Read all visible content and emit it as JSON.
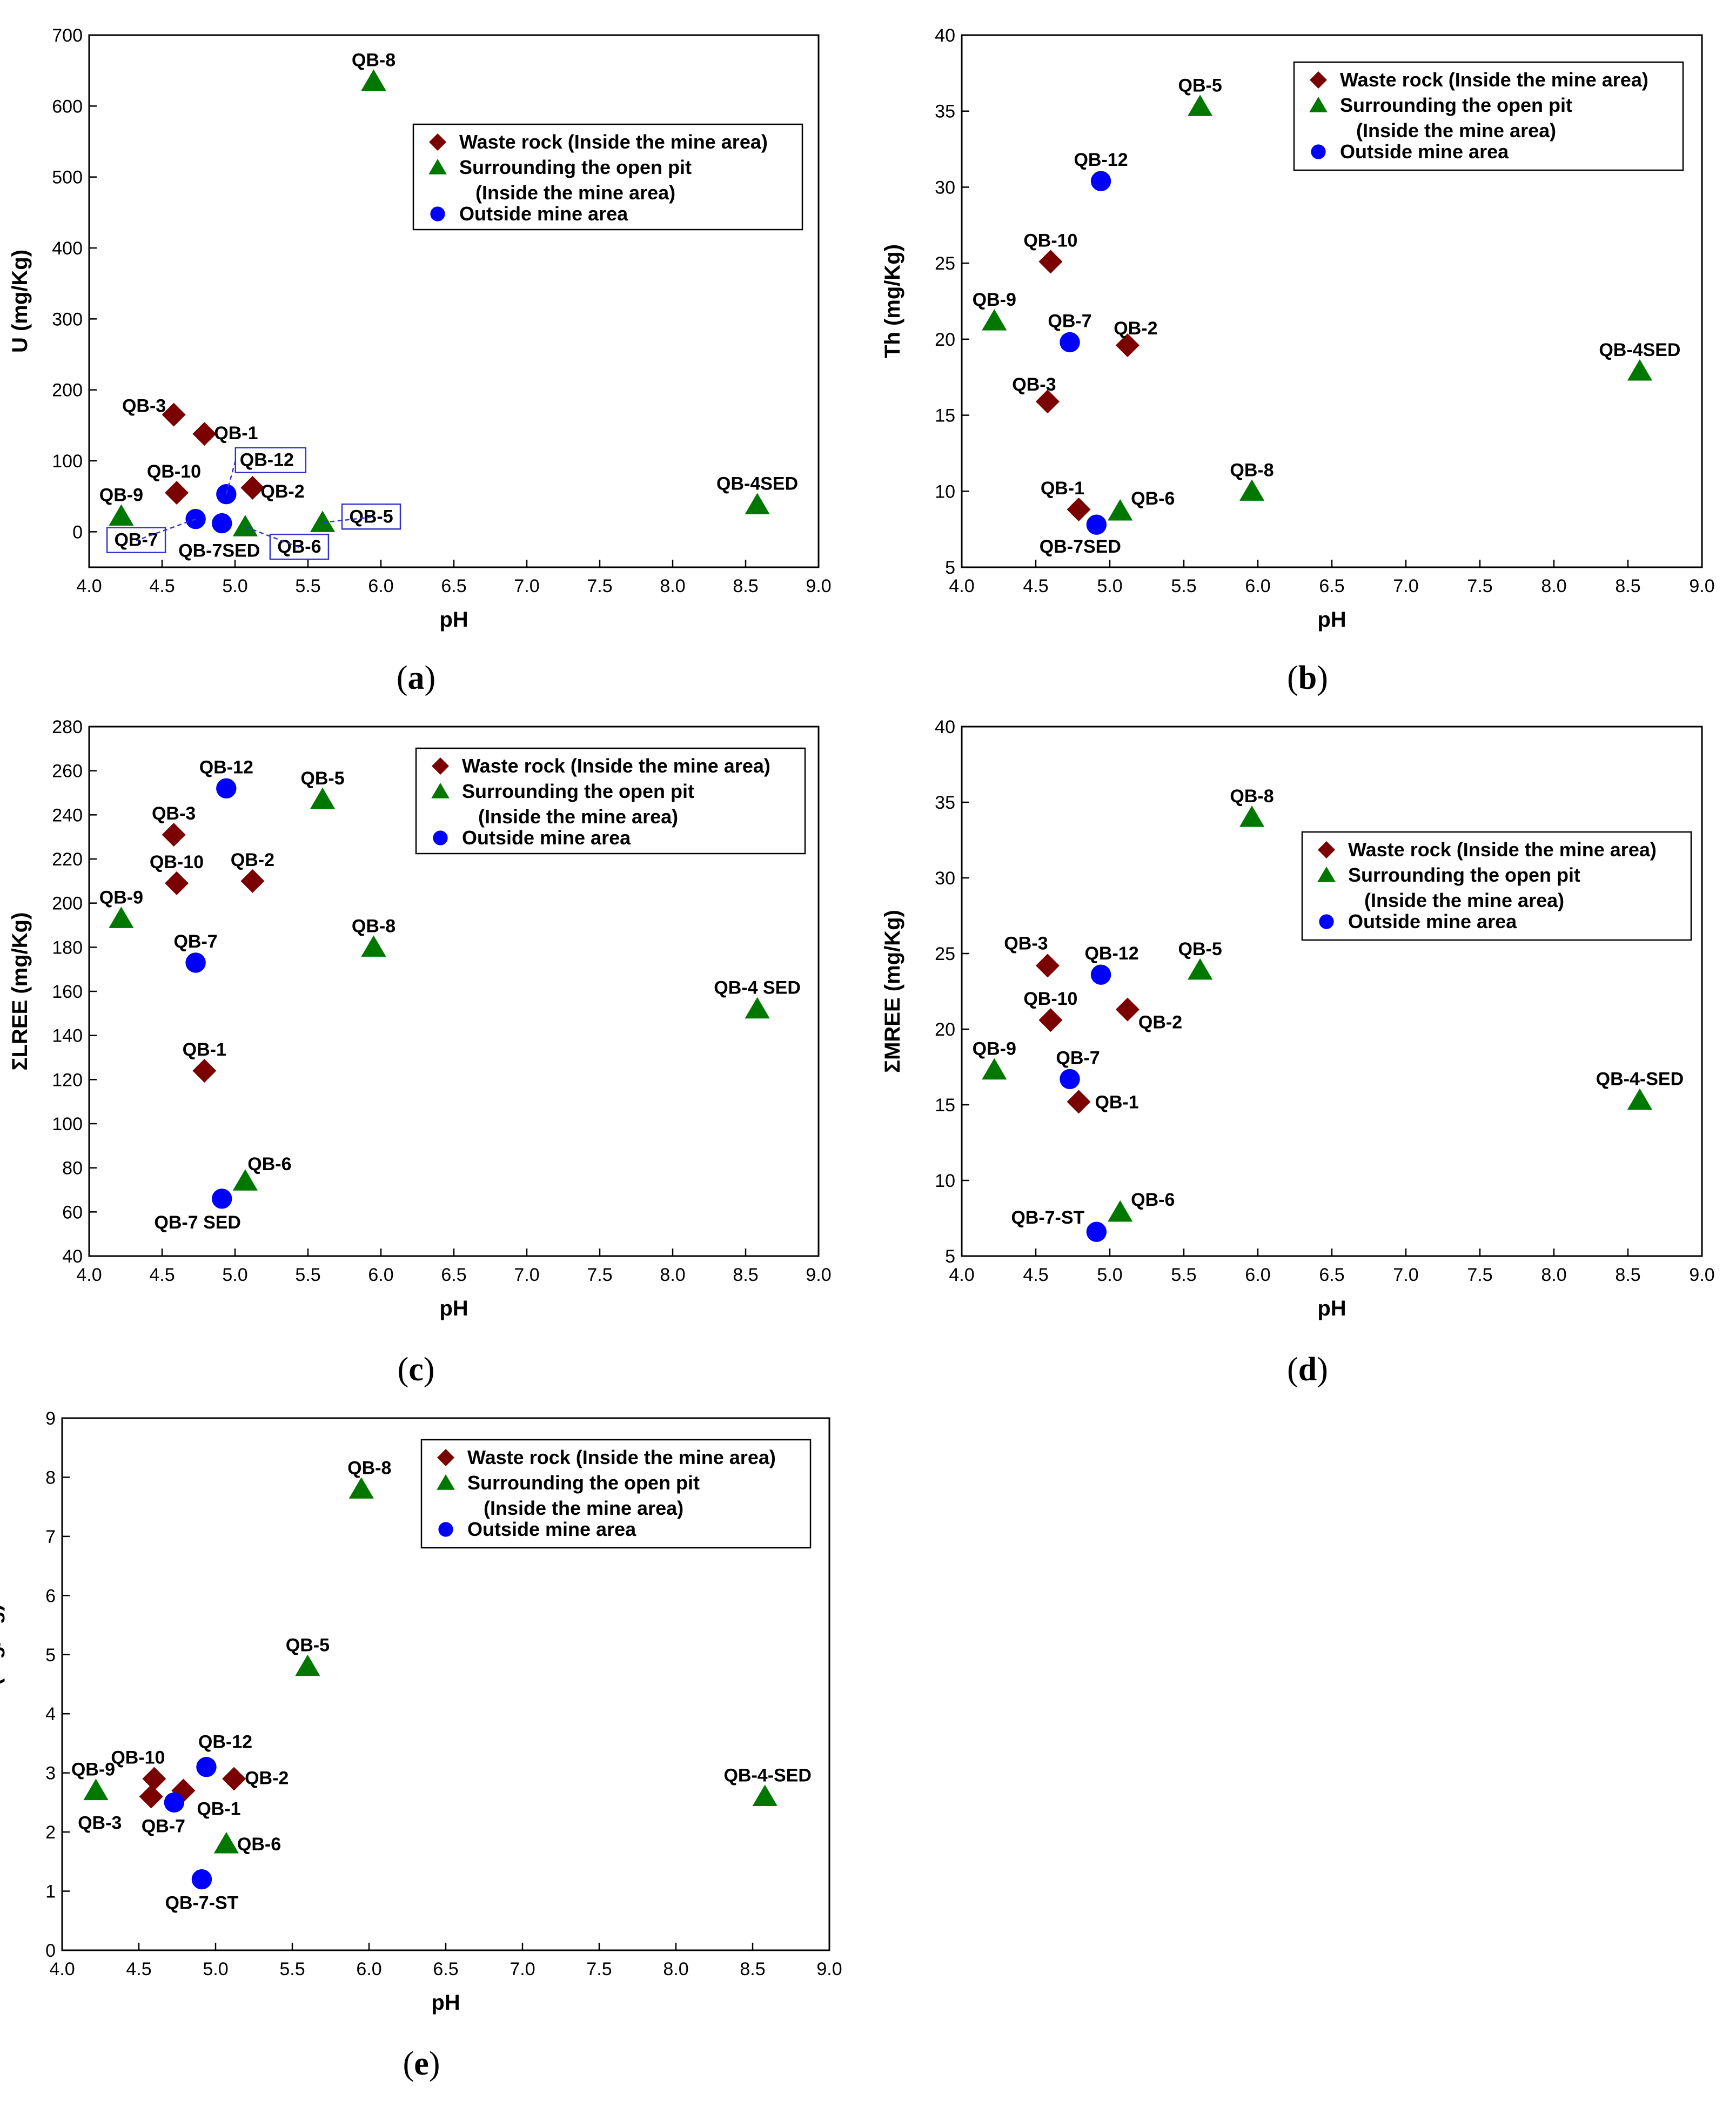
{
  "legend": [
    {
      "marker": "diamond",
      "color": "#7b0000",
      "label": "Waste rock (Inside the mine area)"
    },
    {
      "marker": "triangle",
      "color": "#007800",
      "label": "Surrounding the open pit",
      "label2": "(Inside the mine area)"
    },
    {
      "marker": "circle",
      "color": "#0000ff",
      "label": "Outside mine area"
    }
  ],
  "panels": [
    {
      "id": "a",
      "caption": "a",
      "chart_data": {
        "type": "scatter",
        "xlabel": "pH",
        "ylabel": "U (mg/Kg)",
        "xlim": [
          4.0,
          9.0
        ],
        "ylim": [
          -50,
          700
        ],
        "xticks": [
          "4.0",
          "4.5",
          "5.0",
          "5.5",
          "6.0",
          "6.5",
          "7.0",
          "7.5",
          "8.0",
          "8.5",
          "9.0"
        ],
        "yticks": [
          "0",
          "100",
          "200",
          "300",
          "400",
          "500",
          "600",
          "700"
        ],
        "legend_position": "top-right",
        "points": [
          {
            "label": "QB-8",
            "group": "triangle",
            "x": 5.95,
            "y": 635
          },
          {
            "label": "QB-3",
            "group": "diamond",
            "x": 4.58,
            "y": 165
          },
          {
            "label": "QB-1",
            "group": "diamond",
            "x": 4.79,
            "y": 138
          },
          {
            "label": "QB-12",
            "group": "circle",
            "x": 4.94,
            "y": 53,
            "boxed": true
          },
          {
            "label": "QB-10",
            "group": "diamond",
            "x": 4.6,
            "y": 55
          },
          {
            "label": "QB-2",
            "group": "diamond",
            "x": 5.12,
            "y": 62
          },
          {
            "label": "QB-9",
            "group": "triangle",
            "x": 4.22,
            "y": 22
          },
          {
            "label": "QB-7",
            "group": "circle",
            "x": 4.73,
            "y": 18,
            "boxed": true
          },
          {
            "label": "QB-7SED",
            "group": "circle",
            "x": 4.91,
            "y": 12
          },
          {
            "label": "QB-6",
            "group": "triangle",
            "x": 5.07,
            "y": 7,
            "boxed": true
          },
          {
            "label": "QB-5",
            "group": "triangle",
            "x": 5.6,
            "y": 13,
            "boxed": true
          },
          {
            "label": "QB-4SED",
            "group": "triangle",
            "x": 8.58,
            "y": 38
          }
        ]
      }
    },
    {
      "id": "b",
      "caption": "b",
      "chart_data": {
        "type": "scatter",
        "xlabel": "pH",
        "ylabel": "Th (mg/Kg)",
        "xlim": [
          4.0,
          9.0
        ],
        "ylim": [
          5,
          40
        ],
        "xticks": [
          "4.0",
          "4.5",
          "5.0",
          "5.5",
          "6.0",
          "6.5",
          "7.0",
          "7.5",
          "8.0",
          "8.5",
          "9.0"
        ],
        "yticks": [
          "5",
          "10",
          "15",
          "20",
          "25",
          "30",
          "35",
          "40"
        ],
        "legend_position": "top-right",
        "points": [
          {
            "label": "QB-5",
            "group": "triangle",
            "x": 5.61,
            "y": 35.3
          },
          {
            "label": "QB-12",
            "group": "circle",
            "x": 4.94,
            "y": 30.4
          },
          {
            "label": "QB-10",
            "group": "diamond",
            "x": 4.6,
            "y": 25.1
          },
          {
            "label": "QB-9",
            "group": "triangle",
            "x": 4.22,
            "y": 21.2
          },
          {
            "label": "QB-7",
            "group": "circle",
            "x": 4.73,
            "y": 19.8
          },
          {
            "label": "QB-2",
            "group": "diamond",
            "x": 5.12,
            "y": 19.6
          },
          {
            "label": "QB-4SED",
            "group": "triangle",
            "x": 8.58,
            "y": 17.9
          },
          {
            "label": "QB-3",
            "group": "diamond",
            "x": 4.58,
            "y": 15.9
          },
          {
            "label": "QB-1",
            "group": "diamond",
            "x": 4.79,
            "y": 8.8
          },
          {
            "label": "QB-6",
            "group": "triangle",
            "x": 5.07,
            "y": 8.7
          },
          {
            "label": "QB-8",
            "group": "triangle",
            "x": 5.96,
            "y": 10.0
          },
          {
            "label": "QB-7SED",
            "group": "circle",
            "x": 4.91,
            "y": 7.8
          }
        ]
      }
    },
    {
      "id": "c",
      "caption": "c",
      "chart_data": {
        "type": "scatter",
        "xlabel": "pH",
        "ylabel": "ΣLREE (mg/Kg)",
        "xlim": [
          4.0,
          9.0
        ],
        "ylim": [
          40,
          280
        ],
        "xticks": [
          "4.0",
          "4.5",
          "5.0",
          "5.5",
          "6.0",
          "6.5",
          "7.0",
          "7.5",
          "8.0",
          "8.5",
          "9.0"
        ],
        "yticks": [
          "40",
          "60",
          "80",
          "100",
          "120",
          "140",
          "160",
          "180",
          "200",
          "220",
          "240",
          "260",
          "280"
        ],
        "legend_position": "top-right",
        "points": [
          {
            "label": "QB-12",
            "group": "circle",
            "x": 4.94,
            "y": 252
          },
          {
            "label": "QB-5",
            "group": "triangle",
            "x": 5.6,
            "y": 247
          },
          {
            "label": "QB-3",
            "group": "diamond",
            "x": 4.58,
            "y": 231
          },
          {
            "label": "QB-10",
            "group": "diamond",
            "x": 4.6,
            "y": 209
          },
          {
            "label": "QB-2",
            "group": "diamond",
            "x": 5.12,
            "y": 210
          },
          {
            "label": "QB-9",
            "group": "triangle",
            "x": 4.22,
            "y": 193
          },
          {
            "label": "QB-8",
            "group": "triangle",
            "x": 5.95,
            "y": 180
          },
          {
            "label": "QB-7",
            "group": "circle",
            "x": 4.73,
            "y": 173
          },
          {
            "label": "QB-4 SED",
            "group": "triangle",
            "x": 8.58,
            "y": 152
          },
          {
            "label": "QB-1",
            "group": "diamond",
            "x": 4.79,
            "y": 124
          },
          {
            "label": "QB-6",
            "group": "triangle",
            "x": 5.07,
            "y": 74
          },
          {
            "label": "QB-7 SED",
            "group": "circle",
            "x": 4.91,
            "y": 66
          }
        ]
      }
    },
    {
      "id": "d",
      "caption": "d",
      "chart_data": {
        "type": "scatter",
        "xlabel": "pH",
        "ylabel": "ΣMREE (mg/Kg)",
        "xlim": [
          4.0,
          9.0
        ],
        "ylim": [
          5,
          40
        ],
        "xticks": [
          "4.0",
          "4.5",
          "5.0",
          "5.5",
          "6.0",
          "6.5",
          "7.0",
          "7.5",
          "8.0",
          "8.5",
          "9.0"
        ],
        "yticks": [
          "5",
          "10",
          "15",
          "20",
          "25",
          "30",
          "35",
          "40"
        ],
        "legend_position": "top-right",
        "points": [
          {
            "label": "QB-8",
            "group": "triangle",
            "x": 5.96,
            "y": 34.0
          },
          {
            "label": "QB-3",
            "group": "diamond",
            "x": 4.58,
            "y": 24.2
          },
          {
            "label": "QB-12",
            "group": "circle",
            "x": 4.94,
            "y": 23.6
          },
          {
            "label": "QB-5",
            "group": "triangle",
            "x": 5.61,
            "y": 23.9
          },
          {
            "label": "QB-10",
            "group": "diamond",
            "x": 4.6,
            "y": 20.6
          },
          {
            "label": "QB-2",
            "group": "diamond",
            "x": 5.12,
            "y": 21.3
          },
          {
            "label": "QB-9",
            "group": "triangle",
            "x": 4.22,
            "y": 17.3
          },
          {
            "label": "QB-7",
            "group": "circle",
            "x": 4.73,
            "y": 16.7
          },
          {
            "label": "QB-1",
            "group": "diamond",
            "x": 4.79,
            "y": 15.2
          },
          {
            "label": "QB-4-SED",
            "group": "triangle",
            "x": 8.58,
            "y": 15.3
          },
          {
            "label": "QB-6",
            "group": "triangle",
            "x": 5.07,
            "y": 7.9
          },
          {
            "label": "QB-7-ST",
            "group": "circle",
            "x": 4.91,
            "y": 6.6
          }
        ]
      }
    },
    {
      "id": "e",
      "caption": "e",
      "chart_data": {
        "type": "scatter",
        "xlabel": "pH",
        "ylabel": "ΣHREE (mg/Kg)",
        "xlim": [
          4.0,
          9.0
        ],
        "ylim": [
          0,
          9
        ],
        "xticks": [
          "4.0",
          "4.5",
          "5.0",
          "5.5",
          "6.0",
          "6.5",
          "7.0",
          "7.5",
          "8.0",
          "8.5",
          "9.0"
        ],
        "yticks": [
          "0",
          "1",
          "2",
          "3",
          "4",
          "5",
          "6",
          "7",
          "8",
          "9"
        ],
        "legend_position": "top-right",
        "points": [
          {
            "label": "QB-8",
            "group": "triangle",
            "x": 5.95,
            "y": 7.8
          },
          {
            "label": "QB-5",
            "group": "triangle",
            "x": 5.6,
            "y": 4.8
          },
          {
            "label": "QB-10",
            "group": "diamond",
            "x": 4.6,
            "y": 2.9
          },
          {
            "label": "QB-12",
            "group": "circle",
            "x": 4.94,
            "y": 3.1
          },
          {
            "label": "QB-2",
            "group": "diamond",
            "x": 5.12,
            "y": 2.9
          },
          {
            "label": "QB-9",
            "group": "triangle",
            "x": 4.22,
            "y": 2.7
          },
          {
            "label": "QB-1",
            "group": "diamond",
            "x": 4.79,
            "y": 2.7
          },
          {
            "label": "QB-3",
            "group": "diamond",
            "x": 4.58,
            "y": 2.6
          },
          {
            "label": "QB-7",
            "group": "circle",
            "x": 4.73,
            "y": 2.5
          },
          {
            "label": "QB-6",
            "group": "triangle",
            "x": 5.07,
            "y": 1.8
          },
          {
            "label": "QB-7-ST",
            "group": "circle",
            "x": 4.91,
            "y": 1.2
          },
          {
            "label": "QB-4-SED",
            "group": "triangle",
            "x": 8.58,
            "y": 2.6
          }
        ]
      }
    }
  ]
}
